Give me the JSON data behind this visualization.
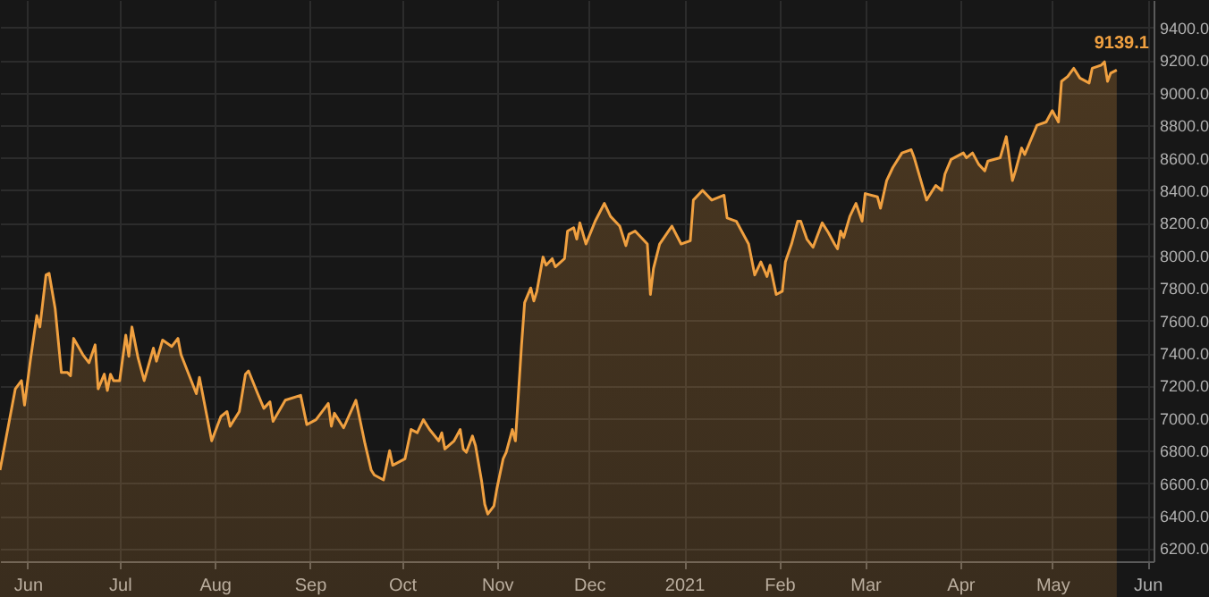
{
  "chart_data": {
    "type": "area",
    "x": [
      "2020-05-23",
      "2020-05-28",
      "2020-05-30",
      "2020-05-31",
      "2020-06-02",
      "2020-06-04",
      "2020-06-05",
      "2020-06-07",
      "2020-06-08",
      "2020-06-10",
      "2020-06-12",
      "2020-06-14",
      "2020-06-15",
      "2020-06-16",
      "2020-06-19",
      "2020-06-21",
      "2020-06-23",
      "2020-06-24",
      "2020-06-26",
      "2020-06-27",
      "2020-06-28",
      "2020-06-29",
      "2020-07-01",
      "2020-07-03",
      "2020-07-04",
      "2020-07-05",
      "2020-07-07",
      "2020-07-09",
      "2020-07-12",
      "2020-07-13",
      "2020-07-15",
      "2020-07-18",
      "2020-07-20",
      "2020-07-21",
      "2020-07-26",
      "2020-07-27",
      "2020-07-31",
      "2020-08-03",
      "2020-08-05",
      "2020-08-06",
      "2020-08-09",
      "2020-08-11",
      "2020-08-12",
      "2020-08-15",
      "2020-08-17",
      "2020-08-19",
      "2020-08-20",
      "2020-08-24",
      "2020-08-29",
      "2020-08-31",
      "2020-09-03",
      "2020-09-07",
      "2020-09-08",
      "2020-09-09",
      "2020-09-12",
      "2020-09-16",
      "2020-09-19",
      "2020-09-21",
      "2020-09-22",
      "2020-09-25",
      "2020-09-27",
      "2020-09-28",
      "2020-10-02",
      "2020-10-04",
      "2020-10-06",
      "2020-10-08",
      "2020-10-10",
      "2020-10-13",
      "2020-10-14",
      "2020-10-15",
      "2020-10-18",
      "2020-10-20",
      "2020-10-21",
      "2020-10-22",
      "2020-10-24",
      "2020-10-25",
      "2020-10-27",
      "2020-10-28",
      "2020-10-29",
      "2020-10-31",
      "2020-11-01",
      "2020-11-03",
      "2020-11-04",
      "2020-11-06",
      "2020-11-07",
      "2020-11-09",
      "2020-11-10",
      "2020-11-12",
      "2020-11-13",
      "2020-11-14",
      "2020-11-16",
      "2020-11-17",
      "2020-11-19",
      "2020-11-20",
      "2020-11-23",
      "2020-11-24",
      "2020-11-26",
      "2020-11-27",
      "2020-11-28",
      "2020-11-30",
      "2020-12-03",
      "2020-12-06",
      "2020-12-08",
      "2020-12-11",
      "2020-12-13",
      "2020-12-14",
      "2020-12-16",
      "2020-12-20",
      "2020-12-21",
      "2020-12-22",
      "2020-12-24",
      "2020-12-28",
      "2020-12-31",
      "2021-01-03",
      "2021-01-04",
      "2021-01-07",
      "2021-01-10",
      "2021-01-14",
      "2021-01-15",
      "2021-01-18",
      "2021-01-22",
      "2021-01-24",
      "2021-01-26",
      "2021-01-28",
      "2021-01-29",
      "2021-01-31",
      "2021-02-02",
      "2021-02-03",
      "2021-02-05",
      "2021-02-07",
      "2021-02-08",
      "2021-02-10",
      "2021-02-12",
      "2021-02-15",
      "2021-02-17",
      "2021-02-19",
      "2021-02-20",
      "2021-02-21",
      "2021-02-22",
      "2021-02-24",
      "2021-02-26",
      "2021-02-28",
      "2021-03-01",
      "2021-03-05",
      "2021-03-06",
      "2021-03-08",
      "2021-03-10",
      "2021-03-13",
      "2021-03-16",
      "2021-03-17",
      "2021-03-21",
      "2021-03-24",
      "2021-03-26",
      "2021-03-27",
      "2021-03-29",
      "2021-04-02",
      "2021-04-03",
      "2021-04-05",
      "2021-04-07",
      "2021-04-09",
      "2021-04-10",
      "2021-04-14",
      "2021-04-16",
      "2021-04-18",
      "2021-04-19",
      "2021-04-21",
      "2021-04-22",
      "2021-04-26",
      "2021-04-29",
      "2021-05-01",
      "2021-05-03",
      "2021-05-04",
      "2021-05-06",
      "2021-05-08",
      "2021-05-10",
      "2021-05-13",
      "2021-05-14",
      "2021-05-17",
      "2021-05-18",
      "2021-05-19",
      "2021-05-20",
      "2021-05-22"
    ],
    "series": [
      {
        "color": "#f0a040",
        "values": [
          6680,
          7180,
          7230,
          7080,
          7370,
          7630,
          7560,
          7880,
          7890,
          7670,
          7280,
          7280,
          7260,
          7490,
          7390,
          7340,
          7450,
          7180,
          7270,
          7170,
          7270,
          7230,
          7230,
          7510,
          7380,
          7560,
          7370,
          7230,
          7430,
          7350,
          7480,
          7440,
          7490,
          7390,
          7150,
          7250,
          6860,
          7010,
          7040,
          6950,
          7040,
          7270,
          7290,
          7150,
          7060,
          7100,
          6980,
          7110,
          7140,
          6960,
          6990,
          7090,
          6950,
          7030,
          6940,
          7110,
          6840,
          6680,
          6650,
          6620,
          6800,
          6710,
          6750,
          6930,
          6910,
          6990,
          6930,
          6860,
          6910,
          6810,
          6860,
          6930,
          6810,
          6790,
          6890,
          6830,
          6610,
          6470,
          6410,
          6460,
          6570,
          6750,
          6790,
          6930,
          6860,
          7450,
          7710,
          7800,
          7720,
          7780,
          7990,
          7940,
          7980,
          7930,
          7980,
          8150,
          8170,
          8100,
          8200,
          8070,
          8210,
          8320,
          8240,
          8180,
          8060,
          8130,
          8150,
          8070,
          7760,
          7920,
          8070,
          8180,
          8070,
          8090,
          8340,
          8400,
          8340,
          8370,
          8230,
          8210,
          8070,
          7880,
          7960,
          7870,
          7940,
          7760,
          7780,
          7960,
          8070,
          8210,
          8210,
          8100,
          8050,
          8200,
          8140,
          8070,
          8040,
          8150,
          8110,
          8240,
          8320,
          8210,
          8380,
          8360,
          8290,
          8460,
          8540,
          8630,
          8650,
          8600,
          8340,
          8430,
          8400,
          8500,
          8590,
          8630,
          8600,
          8630,
          8560,
          8520,
          8580,
          8600,
          8730,
          8460,
          8520,
          8660,
          8620,
          8800,
          8820,
          8890,
          8820,
          9070,
          9100,
          9150,
          9090,
          9060,
          9150,
          9170,
          9190,
          9070,
          9120,
          9139.1
        ]
      }
    ],
    "xlim": [
      "2020-05-23",
      "2021-06-03"
    ],
    "xticks": [
      {
        "value": "2020-06-01",
        "label": "Jun"
      },
      {
        "value": "2020-07-01",
        "label": "Jul"
      },
      {
        "value": "2020-08-01",
        "label": "Aug"
      },
      {
        "value": "2020-09-01",
        "label": "Sep"
      },
      {
        "value": "2020-10-01",
        "label": "Oct"
      },
      {
        "value": "2020-11-01",
        "label": "Nov"
      },
      {
        "value": "2020-12-01",
        "label": "Dec"
      },
      {
        "value": "2021-01-01",
        "label": "2021"
      },
      {
        "value": "2021-02-01",
        "label": "Feb"
      },
      {
        "value": "2021-03-01",
        "label": "Mar"
      },
      {
        "value": "2021-04-01",
        "label": "Apr"
      },
      {
        "value": "2021-05-01",
        "label": "May"
      },
      {
        "value": "2021-06-01",
        "label": "Jun"
      }
    ],
    "ylim": [
      6120,
      9570
    ],
    "yticks": [
      {
        "value": 6200,
        "label": "6200.0"
      },
      {
        "value": 6400,
        "label": "6400.0"
      },
      {
        "value": 6600,
        "label": "6600.0"
      },
      {
        "value": 6800,
        "label": "6800.0"
      },
      {
        "value": 7000,
        "label": "7000.0"
      },
      {
        "value": 7200,
        "label": "7200.0"
      },
      {
        "value": 7400,
        "label": "7400.0"
      },
      {
        "value": 7600,
        "label": "7600.0"
      },
      {
        "value": 7800,
        "label": "7800.0"
      },
      {
        "value": 8000,
        "label": "8000.0"
      },
      {
        "value": 8200,
        "label": "8200.0"
      },
      {
        "value": 8400,
        "label": "8400.0"
      },
      {
        "value": 8600,
        "label": "8600.0"
      },
      {
        "value": 8800,
        "label": "8800.0"
      },
      {
        "value": 9000,
        "label": "9000.0"
      },
      {
        "value": 9200,
        "label": "9200.0"
      },
      {
        "value": 9400,
        "label": "9400.0"
      }
    ],
    "annotations": [
      {
        "text": "9139.1",
        "x": "2021-05-22",
        "y": 9139.1
      }
    ],
    "grid": true
  }
}
